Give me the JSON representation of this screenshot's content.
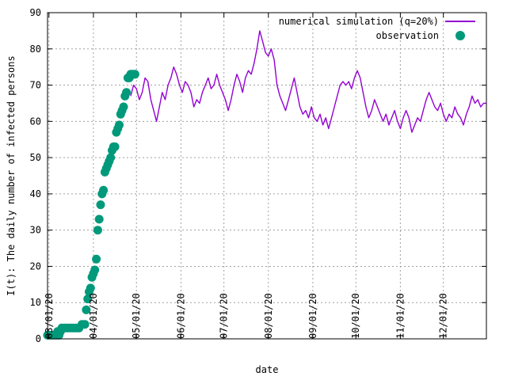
{
  "chart_data": {
    "type": "line",
    "title": "",
    "xlabel": "date",
    "ylabel": "I(t): The daily number of infected persons",
    "ylim": [
      0,
      90
    ],
    "xlim": [
      "2020-02-29",
      "2020-12-31"
    ],
    "grid": true,
    "legend_position": "top-right",
    "y_ticks": [
      0,
      10,
      20,
      30,
      40,
      50,
      60,
      70,
      80,
      90
    ],
    "x_ticks": [
      {
        "date": "2020-03-01",
        "label": "03/01/20"
      },
      {
        "date": "2020-04-01",
        "label": "04/01/20"
      },
      {
        "date": "2020-05-01",
        "label": "05/01/20"
      },
      {
        "date": "2020-06-01",
        "label": "06/01/20"
      },
      {
        "date": "2020-07-01",
        "label": "07/01/20"
      },
      {
        "date": "2020-08-01",
        "label": "08/01/20"
      },
      {
        "date": "2020-09-01",
        "label": "09/01/20"
      },
      {
        "date": "2020-10-01",
        "label": "10/01/20"
      },
      {
        "date": "2020-11-01",
        "label": "11/01/20"
      },
      {
        "date": "2020-12-01",
        "label": "12/01/20"
      }
    ],
    "series": [
      {
        "name": "numerical simulation (q=20%)",
        "kind": "line",
        "color": "#9400d3",
        "points": [
          [
            "2020-04-27",
            67
          ],
          [
            "2020-04-29",
            70
          ],
          [
            "2020-05-01",
            69
          ],
          [
            "2020-05-03",
            66
          ],
          [
            "2020-05-05",
            68
          ],
          [
            "2020-05-07",
            72
          ],
          [
            "2020-05-09",
            71
          ],
          [
            "2020-05-11",
            66
          ],
          [
            "2020-05-13",
            63
          ],
          [
            "2020-05-15",
            60
          ],
          [
            "2020-05-17",
            64
          ],
          [
            "2020-05-19",
            68
          ],
          [
            "2020-05-21",
            66
          ],
          [
            "2020-05-23",
            70
          ],
          [
            "2020-05-25",
            72
          ],
          [
            "2020-05-27",
            75
          ],
          [
            "2020-05-29",
            73
          ],
          [
            "2020-05-31",
            70
          ],
          [
            "2020-06-02",
            68
          ],
          [
            "2020-06-04",
            71
          ],
          [
            "2020-06-06",
            70
          ],
          [
            "2020-06-08",
            68
          ],
          [
            "2020-06-10",
            64
          ],
          [
            "2020-06-12",
            66
          ],
          [
            "2020-06-14",
            65
          ],
          [
            "2020-06-16",
            68
          ],
          [
            "2020-06-18",
            70
          ],
          [
            "2020-06-20",
            72
          ],
          [
            "2020-06-22",
            69
          ],
          [
            "2020-06-24",
            70
          ],
          [
            "2020-06-26",
            73
          ],
          [
            "2020-06-28",
            70
          ],
          [
            "2020-06-30",
            68
          ],
          [
            "2020-07-02",
            66
          ],
          [
            "2020-07-04",
            63
          ],
          [
            "2020-07-06",
            66
          ],
          [
            "2020-07-08",
            70
          ],
          [
            "2020-07-10",
            73
          ],
          [
            "2020-07-12",
            71
          ],
          [
            "2020-07-14",
            68
          ],
          [
            "2020-07-16",
            72
          ],
          [
            "2020-07-18",
            74
          ],
          [
            "2020-07-20",
            73
          ],
          [
            "2020-07-22",
            76
          ],
          [
            "2020-07-24",
            80
          ],
          [
            "2020-07-26",
            85
          ],
          [
            "2020-07-28",
            82
          ],
          [
            "2020-07-30",
            79
          ],
          [
            "2020-08-01",
            78
          ],
          [
            "2020-08-03",
            80
          ],
          [
            "2020-08-05",
            77
          ],
          [
            "2020-08-07",
            70
          ],
          [
            "2020-08-09",
            67
          ],
          [
            "2020-08-11",
            65
          ],
          [
            "2020-08-13",
            63
          ],
          [
            "2020-08-15",
            66
          ],
          [
            "2020-08-17",
            69
          ],
          [
            "2020-08-19",
            72
          ],
          [
            "2020-08-21",
            68
          ],
          [
            "2020-08-23",
            64
          ],
          [
            "2020-08-25",
            62
          ],
          [
            "2020-08-27",
            63
          ],
          [
            "2020-08-29",
            61
          ],
          [
            "2020-08-31",
            64
          ],
          [
            "2020-09-02",
            61
          ],
          [
            "2020-09-04",
            60
          ],
          [
            "2020-09-06",
            62
          ],
          [
            "2020-09-08",
            59
          ],
          [
            "2020-09-10",
            61
          ],
          [
            "2020-09-12",
            58
          ],
          [
            "2020-09-14",
            61
          ],
          [
            "2020-09-16",
            64
          ],
          [
            "2020-09-18",
            67
          ],
          [
            "2020-09-20",
            70
          ],
          [
            "2020-09-22",
            71
          ],
          [
            "2020-09-24",
            70
          ],
          [
            "2020-09-26",
            71
          ],
          [
            "2020-09-28",
            69
          ],
          [
            "2020-09-30",
            72
          ],
          [
            "2020-10-02",
            74
          ],
          [
            "2020-10-04",
            72
          ],
          [
            "2020-10-06",
            68
          ],
          [
            "2020-10-08",
            64
          ],
          [
            "2020-10-10",
            61
          ],
          [
            "2020-10-12",
            63
          ],
          [
            "2020-10-14",
            66
          ],
          [
            "2020-10-16",
            64
          ],
          [
            "2020-10-18",
            62
          ],
          [
            "2020-10-20",
            60
          ],
          [
            "2020-10-22",
            62
          ],
          [
            "2020-10-24",
            59
          ],
          [
            "2020-10-26",
            61
          ],
          [
            "2020-10-28",
            63
          ],
          [
            "2020-10-30",
            60
          ],
          [
            "2020-11-01",
            58
          ],
          [
            "2020-11-03",
            61
          ],
          [
            "2020-11-05",
            63
          ],
          [
            "2020-11-07",
            61
          ],
          [
            "2020-11-09",
            57
          ],
          [
            "2020-11-11",
            59
          ],
          [
            "2020-11-13",
            61
          ],
          [
            "2020-11-15",
            60
          ],
          [
            "2020-11-17",
            63
          ],
          [
            "2020-11-19",
            66
          ],
          [
            "2020-11-21",
            68
          ],
          [
            "2020-11-23",
            66
          ],
          [
            "2020-11-25",
            64
          ],
          [
            "2020-11-27",
            63
          ],
          [
            "2020-11-29",
            65
          ],
          [
            "2020-12-01",
            62
          ],
          [
            "2020-12-03",
            60
          ],
          [
            "2020-12-05",
            62
          ],
          [
            "2020-12-07",
            61
          ],
          [
            "2020-12-09",
            64
          ],
          [
            "2020-12-11",
            62
          ],
          [
            "2020-12-13",
            61
          ],
          [
            "2020-12-15",
            59
          ],
          [
            "2020-12-17",
            62
          ],
          [
            "2020-12-19",
            64
          ],
          [
            "2020-12-21",
            67
          ],
          [
            "2020-12-23",
            65
          ],
          [
            "2020-12-25",
            66
          ],
          [
            "2020-12-27",
            64
          ],
          [
            "2020-12-29",
            65
          ],
          [
            "2020-12-31",
            65
          ]
        ]
      },
      {
        "name": "observation",
        "kind": "points",
        "color": "#00997a",
        "points": [
          [
            "2020-02-29",
            1
          ],
          [
            "2020-03-02",
            1
          ],
          [
            "2020-03-04",
            1
          ],
          [
            "2020-03-06",
            1
          ],
          [
            "2020-03-07",
            2
          ],
          [
            "2020-03-08",
            1
          ],
          [
            "2020-03-09",
            2
          ],
          [
            "2020-03-10",
            3
          ],
          [
            "2020-03-12",
            3
          ],
          [
            "2020-03-14",
            3
          ],
          [
            "2020-03-16",
            3
          ],
          [
            "2020-03-18",
            3
          ],
          [
            "2020-03-20",
            3
          ],
          [
            "2020-03-22",
            3
          ],
          [
            "2020-03-24",
            4
          ],
          [
            "2020-03-26",
            4
          ],
          [
            "2020-03-27",
            8
          ],
          [
            "2020-03-28",
            11
          ],
          [
            "2020-03-29",
            13
          ],
          [
            "2020-03-30",
            14
          ],
          [
            "2020-03-31",
            17
          ],
          [
            "2020-04-01",
            18
          ],
          [
            "2020-04-02",
            19
          ],
          [
            "2020-04-03",
            22
          ],
          [
            "2020-04-04",
            30
          ],
          [
            "2020-04-05",
            33
          ],
          [
            "2020-04-06",
            37
          ],
          [
            "2020-04-07",
            40
          ],
          [
            "2020-04-08",
            41
          ],
          [
            "2020-04-09",
            46
          ],
          [
            "2020-04-10",
            47
          ],
          [
            "2020-04-11",
            48
          ],
          [
            "2020-04-12",
            49
          ],
          [
            "2020-04-13",
            50
          ],
          [
            "2020-04-14",
            52
          ],
          [
            "2020-04-15",
            53
          ],
          [
            "2020-04-16",
            53
          ],
          [
            "2020-04-17",
            57
          ],
          [
            "2020-04-18",
            58
          ],
          [
            "2020-04-19",
            59
          ],
          [
            "2020-04-20",
            62
          ],
          [
            "2020-04-21",
            63
          ],
          [
            "2020-04-22",
            64
          ],
          [
            "2020-04-23",
            67
          ],
          [
            "2020-04-24",
            68
          ],
          [
            "2020-04-25",
            72
          ],
          [
            "2020-04-26",
            72
          ],
          [
            "2020-04-27",
            73
          ],
          [
            "2020-04-28",
            73
          ],
          [
            "2020-04-29",
            73
          ],
          [
            "2020-04-30",
            73
          ]
        ]
      }
    ]
  }
}
